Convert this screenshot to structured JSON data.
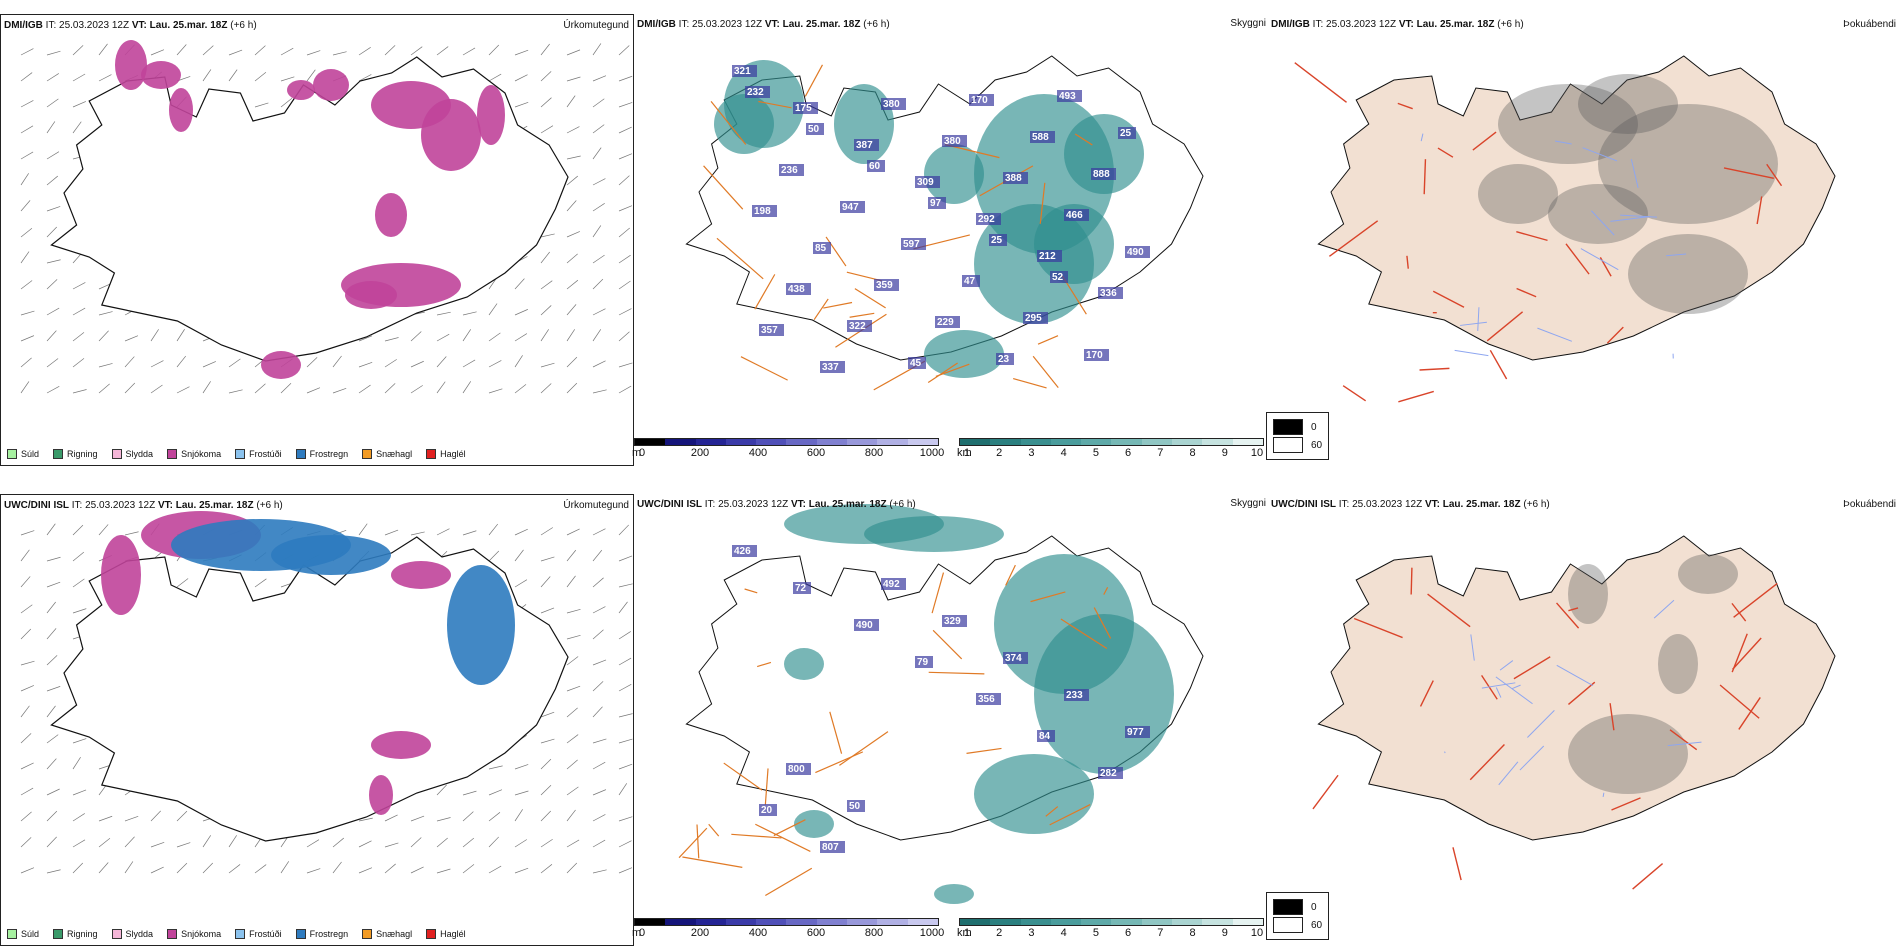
{
  "colors": {
    "precip": "#c0449a",
    "precip_light": "#e7a7cf",
    "frost": "#2e7bbf",
    "frost_light": "#8cc3ee",
    "visibility": "#2f8f8f",
    "visibility_light": "#a6d6d3",
    "low_vis": "#3b3ba0",
    "roads": "#e07a26",
    "land_fog": "#f2e0d2",
    "fog_roads": "#d9442a",
    "rivers": "#8ea6f0"
  },
  "rows": [
    {
      "model": "DMI/IGB",
      "issue_time": "IT: 25.03.2023 12Z",
      "vt_label": "VT:",
      "valid_time": "Lau. 25.mar. 18Z",
      "lead": "(+6 h)",
      "panels": {
        "precip_title": "Úrkomutegund",
        "vis_title": "Skyggni",
        "fog_title": "Þokuábendi"
      },
      "vis_numbers": [
        "321",
        "175",
        "387",
        "309",
        "292",
        "212",
        "336",
        "357",
        "337",
        "380",
        "380",
        "388",
        "466",
        "490",
        "438",
        "322",
        "45",
        "170",
        "588",
        "888",
        "198",
        "85",
        "359",
        "229",
        "23",
        "493",
        "25",
        "236",
        "947",
        "597",
        "47",
        "295",
        "170",
        "232",
        "50",
        "60",
        "97",
        "25",
        "52"
      ]
    },
    {
      "model": "UWC/DINI ISL",
      "issue_time": "IT: 25.03.2023 12Z",
      "vt_label": "VT:",
      "valid_time": "Lau. 25.mar. 18Z",
      "lead": "(+6 h)",
      "panels": {
        "precip_title": "Úrkomutegund",
        "vis_title": "Skyggni",
        "fog_title": "Þokuábendi"
      },
      "vis_numbers": [
        "426",
        "72",
        "490",
        "79",
        "356",
        "84",
        "282",
        "20",
        "807",
        "492",
        "329",
        "374",
        "233",
        "977",
        "800",
        "50"
      ]
    }
  ],
  "precip_legend": [
    {
      "label": "Súld",
      "color": "#a6f0a0"
    },
    {
      "label": "Rigning",
      "color": "#3a9a6a"
    },
    {
      "label": "Slydda",
      "color": "#f5b6d8"
    },
    {
      "label": "Snjókoma",
      "color": "#c0449a"
    },
    {
      "label": "Frostúði",
      "color": "#8cc3ee"
    },
    {
      "label": "Frostregn",
      "color": "#2e7bbf"
    },
    {
      "label": "Snæhagl",
      "color": "#f29b24"
    },
    {
      "label": "Haglél",
      "color": "#e02020"
    }
  ],
  "vis_legend": {
    "m_unit": "m",
    "m_ticks": [
      "0",
      "200",
      "400",
      "600",
      "800",
      "1000"
    ],
    "km_unit": "km",
    "km_ticks": [
      "1",
      "2",
      "3",
      "4",
      "5",
      "6",
      "7",
      "8",
      "9",
      "10"
    ]
  },
  "fog_legend": {
    "high": "0",
    "low": "60"
  }
}
